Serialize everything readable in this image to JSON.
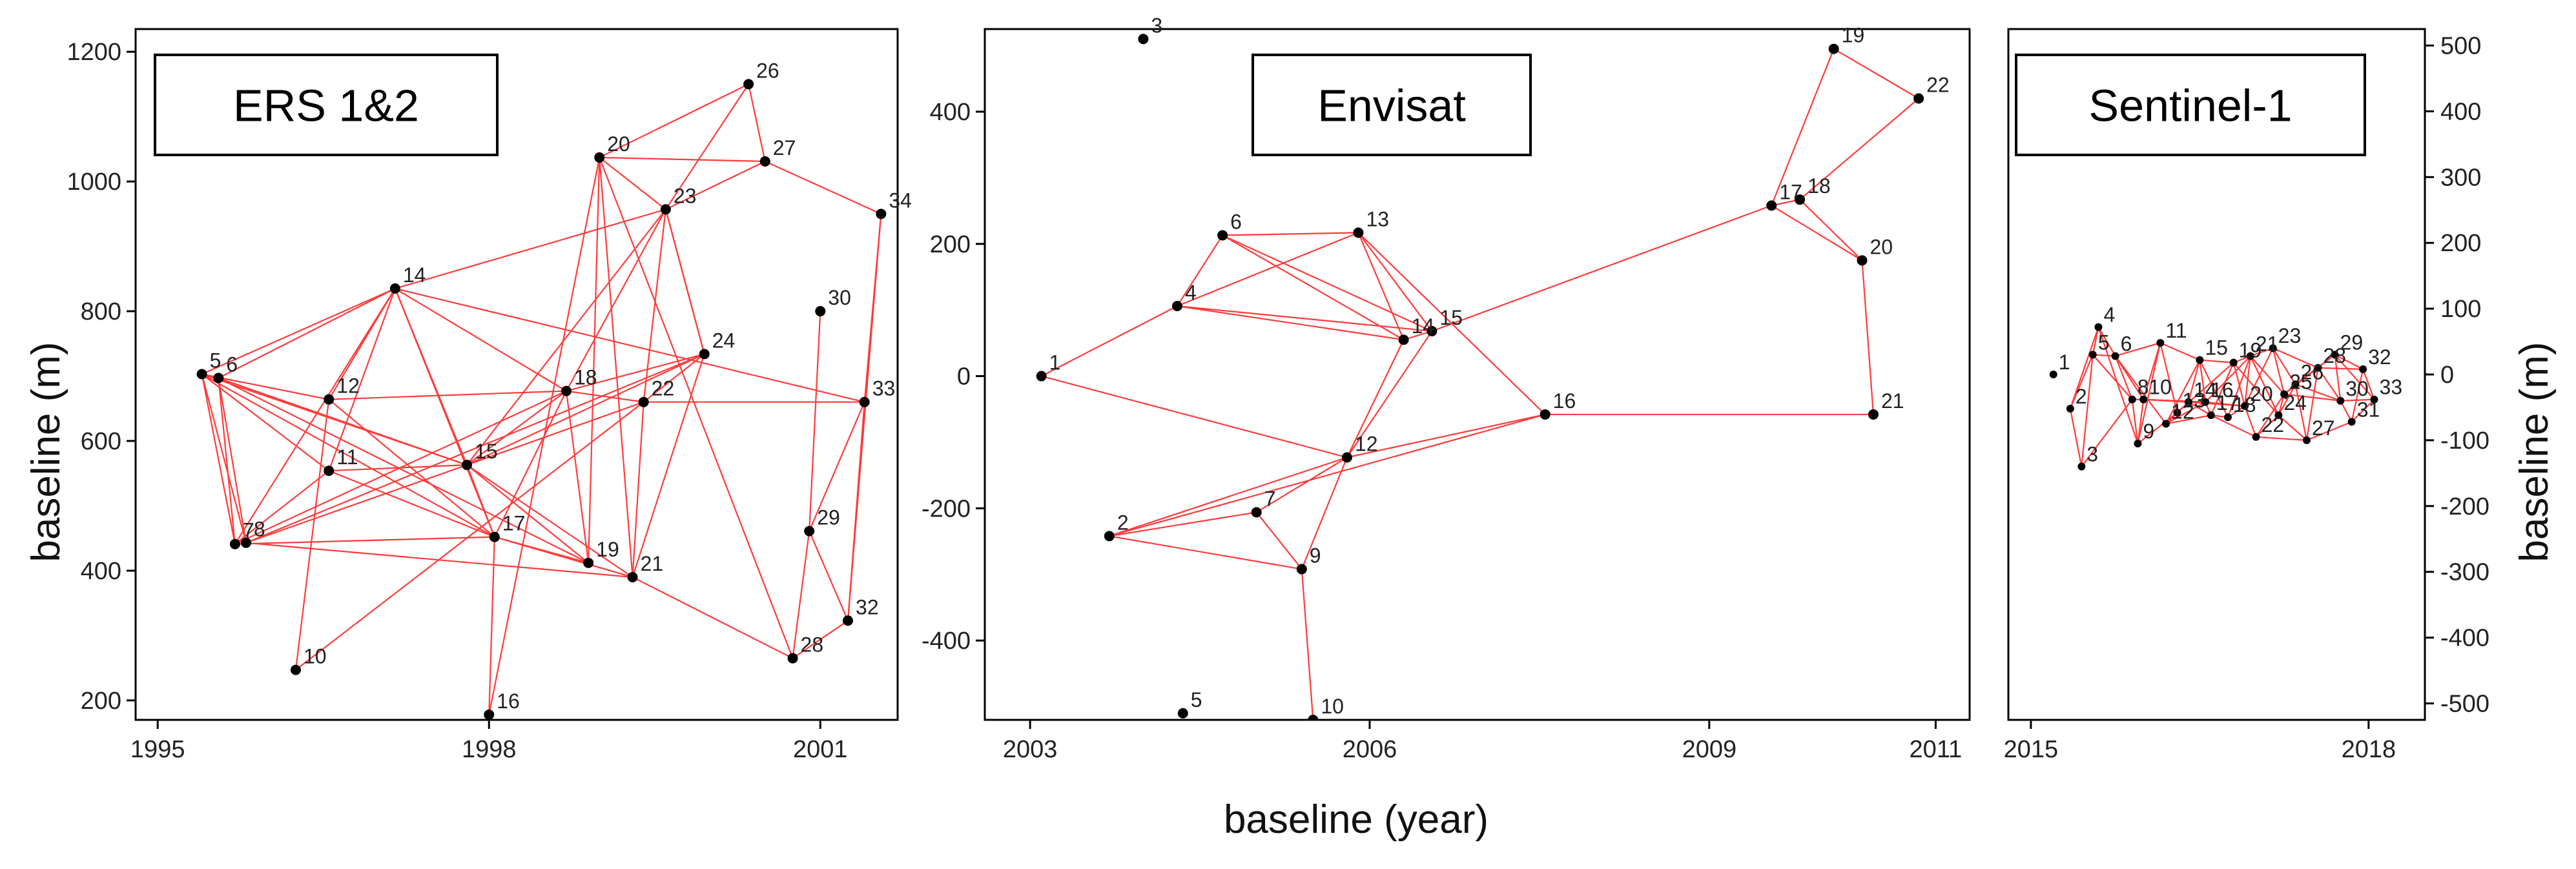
{
  "figure": {
    "xlabel": "baseline (year)",
    "ylabel_left": "baseline (m)",
    "ylabel_right": "baseline (m)"
  },
  "colors": {
    "edge": "#ff3b3b",
    "point": "#000000",
    "frame": "#000000"
  },
  "chart_data": [
    {
      "type": "scatter",
      "title": "ERS 1&2",
      "xlabel": "baseline (year)",
      "ylabel": "baseline (m)",
      "xlim": [
        1994.8,
        2001.7
      ],
      "ylim": [
        170,
        1235
      ],
      "xticks": [
        1995,
        1998,
        2001
      ],
      "yticks": [
        200,
        400,
        600,
        800,
        1000,
        1200
      ],
      "points": [
        {
          "id": "5",
          "x": 1995.4,
          "y": 703
        },
        {
          "id": "6",
          "x": 1995.55,
          "y": 697
        },
        {
          "id": "7",
          "x": 1995.7,
          "y": 441
        },
        {
          "id": "8",
          "x": 1995.8,
          "y": 443
        },
        {
          "id": "10",
          "x": 1996.25,
          "y": 247
        },
        {
          "id": "11",
          "x": 1996.55,
          "y": 554
        },
        {
          "id": "12",
          "x": 1996.55,
          "y": 664
        },
        {
          "id": "14",
          "x": 1997.15,
          "y": 835
        },
        {
          "id": "15",
          "x": 1997.8,
          "y": 563
        },
        {
          "id": "16",
          "x": 1998.0,
          "y": 178
        },
        {
          "id": "17",
          "x": 1998.05,
          "y": 452
        },
        {
          "id": "18",
          "x": 1998.7,
          "y": 677
        },
        {
          "id": "19",
          "x": 1998.9,
          "y": 412
        },
        {
          "id": "20",
          "x": 1999.0,
          "y": 1037
        },
        {
          "id": "21",
          "x": 1999.3,
          "y": 390
        },
        {
          "id": "22",
          "x": 1999.4,
          "y": 660
        },
        {
          "id": "23",
          "x": 1999.6,
          "y": 957
        },
        {
          "id": "24",
          "x": 1999.95,
          "y": 734
        },
        {
          "id": "26",
          "x": 2000.35,
          "y": 1150
        },
        {
          "id": "27",
          "x": 2000.5,
          "y": 1031
        },
        {
          "id": "28",
          "x": 2000.75,
          "y": 265
        },
        {
          "id": "29",
          "x": 2000.9,
          "y": 461
        },
        {
          "id": "30",
          "x": 2001.0,
          "y": 800
        },
        {
          "id": "32",
          "x": 2001.25,
          "y": 323
        },
        {
          "id": "33",
          "x": 2001.4,
          "y": 660
        },
        {
          "id": "34",
          "x": 2001.55,
          "y": 950
        }
      ],
      "edges": [
        [
          "5",
          "7"
        ],
        [
          "5",
          "8"
        ],
        [
          "5",
          "11"
        ],
        [
          "5",
          "12"
        ],
        [
          "5",
          "14"
        ],
        [
          "5",
          "15"
        ],
        [
          "5",
          "17"
        ],
        [
          "6",
          "7"
        ],
        [
          "6",
          "8"
        ],
        [
          "6",
          "15"
        ],
        [
          "6",
          "14"
        ],
        [
          "6",
          "19"
        ],
        [
          "7",
          "11"
        ],
        [
          "7",
          "14"
        ],
        [
          "7",
          "18"
        ],
        [
          "7",
          "17"
        ],
        [
          "8",
          "15"
        ],
        [
          "8",
          "24"
        ],
        [
          "8",
          "21"
        ],
        [
          "10",
          "12"
        ],
        [
          "10",
          "22"
        ],
        [
          "11",
          "15"
        ],
        [
          "11",
          "14"
        ],
        [
          "11",
          "17"
        ],
        [
          "12",
          "14"
        ],
        [
          "12",
          "18"
        ],
        [
          "12",
          "17"
        ],
        [
          "14",
          "15"
        ],
        [
          "14",
          "17"
        ],
        [
          "14",
          "18"
        ],
        [
          "14",
          "23"
        ],
        [
          "14",
          "33"
        ],
        [
          "15",
          "17"
        ],
        [
          "15",
          "18"
        ],
        [
          "15",
          "22"
        ],
        [
          "15",
          "23"
        ],
        [
          "15",
          "24"
        ],
        [
          "15",
          "21"
        ],
        [
          "15",
          "19"
        ],
        [
          "16",
          "17"
        ],
        [
          "16",
          "20"
        ],
        [
          "17",
          "19"
        ],
        [
          "17",
          "18"
        ],
        [
          "17",
          "21"
        ],
        [
          "18",
          "22"
        ],
        [
          "18",
          "24"
        ],
        [
          "18",
          "23"
        ],
        [
          "19",
          "18"
        ],
        [
          "19",
          "20"
        ],
        [
          "20",
          "23"
        ],
        [
          "20",
          "27"
        ],
        [
          "20",
          "26"
        ],
        [
          "20",
          "21"
        ],
        [
          "21",
          "22"
        ],
        [
          "21",
          "24"
        ],
        [
          "21",
          "28"
        ],
        [
          "22",
          "24"
        ],
        [
          "22",
          "33"
        ],
        [
          "22",
          "23"
        ],
        [
          "23",
          "24"
        ],
        [
          "23",
          "26"
        ],
        [
          "23",
          "27"
        ],
        [
          "26",
          "27"
        ],
        [
          "27",
          "34"
        ],
        [
          "28",
          "29"
        ],
        [
          "28",
          "32"
        ],
        [
          "28",
          "20"
        ],
        [
          "29",
          "30"
        ],
        [
          "29",
          "32"
        ],
        [
          "29",
          "33"
        ],
        [
          "32",
          "33"
        ],
        [
          "32",
          "34"
        ],
        [
          "33",
          "34"
        ],
        [
          "24",
          "23"
        ]
      ]
    },
    {
      "type": "scatter",
      "title": "Envisat",
      "xlabel": "baseline (year)",
      "ylim": [
        -520,
        525
      ],
      "xlim": [
        2002.6,
        2011.3
      ],
      "xticks": [
        2003,
        2006,
        2009,
        2011
      ],
      "yticks": [
        -400,
        -200,
        0,
        200,
        400
      ],
      "points": [
        {
          "id": "1",
          "x": 2003.1,
          "y": 0
        },
        {
          "id": "2",
          "x": 2003.7,
          "y": -242
        },
        {
          "id": "3",
          "x": 2004.0,
          "y": 510
        },
        {
          "id": "4",
          "x": 2004.3,
          "y": 106
        },
        {
          "id": "5",
          "x": 2004.35,
          "y": -510
        },
        {
          "id": "6",
          "x": 2004.7,
          "y": 213
        },
        {
          "id": "7",
          "x": 2005.0,
          "y": -206
        },
        {
          "id": "9",
          "x": 2005.4,
          "y": -292
        },
        {
          "id": "10",
          "x": 2005.5,
          "y": -520
        },
        {
          "id": "12",
          "x": 2005.8,
          "y": -123
        },
        {
          "id": "13",
          "x": 2005.9,
          "y": 217
        },
        {
          "id": "14",
          "x": 2006.3,
          "y": 55
        },
        {
          "id": "15",
          "x": 2006.55,
          "y": 68
        },
        {
          "id": "16",
          "x": 2007.55,
          "y": -58
        },
        {
          "id": "17",
          "x": 2009.55,
          "y": 258
        },
        {
          "id": "18",
          "x": 2009.8,
          "y": 267
        },
        {
          "id": "19",
          "x": 2010.1,
          "y": 495
        },
        {
          "id": "20",
          "x": 2010.35,
          "y": 175
        },
        {
          "id": "21",
          "x": 2010.45,
          "y": -58
        },
        {
          "id": "22",
          "x": 2010.85,
          "y": 420
        }
      ],
      "edges": [
        [
          "1",
          "4"
        ],
        [
          "1",
          "12"
        ],
        [
          "2",
          "7"
        ],
        [
          "2",
          "9"
        ],
        [
          "2",
          "12"
        ],
        [
          "2",
          "16"
        ],
        [
          "4",
          "6"
        ],
        [
          "4",
          "13"
        ],
        [
          "4",
          "14"
        ],
        [
          "4",
          "15"
        ],
        [
          "6",
          "13"
        ],
        [
          "6",
          "14"
        ],
        [
          "6",
          "15"
        ],
        [
          "7",
          "9"
        ],
        [
          "7",
          "12"
        ],
        [
          "9",
          "10"
        ],
        [
          "9",
          "12"
        ],
        [
          "12",
          "14"
        ],
        [
          "12",
          "16"
        ],
        [
          "12",
          "15"
        ],
        [
          "13",
          "14"
        ],
        [
          "13",
          "15"
        ],
        [
          "13",
          "16"
        ],
        [
          "14",
          "15"
        ],
        [
          "15",
          "17"
        ],
        [
          "16",
          "21"
        ],
        [
          "17",
          "18"
        ],
        [
          "17",
          "20"
        ],
        [
          "17",
          "19"
        ],
        [
          "18",
          "20"
        ],
        [
          "18",
          "22"
        ],
        [
          "19",
          "22"
        ],
        [
          "20",
          "21"
        ]
      ]
    },
    {
      "type": "scatter",
      "title": "Sentinel-1",
      "xlabel": "baseline (year)",
      "ylabel": "baseline (m)",
      "xlim": [
        2014.8,
        2018.5
      ],
      "ylim": [
        -525,
        525
      ],
      "xticks": [
        2015,
        2018
      ],
      "yticks": [
        -500,
        -400,
        -300,
        -200,
        -100,
        0,
        100,
        200,
        300,
        400,
        500
      ],
      "points": [
        {
          "id": "1",
          "x": 2015.2,
          "y": 0
        },
        {
          "id": "2",
          "x": 2015.35,
          "y": -52
        },
        {
          "id": "3",
          "x": 2015.45,
          "y": -140
        },
        {
          "id": "4",
          "x": 2015.6,
          "y": 72
        },
        {
          "id": "5",
          "x": 2015.55,
          "y": 30
        },
        {
          "id": "6",
          "x": 2015.75,
          "y": 28
        },
        {
          "id": "8",
          "x": 2015.9,
          "y": -38
        },
        {
          "id": "9",
          "x": 2015.95,
          "y": -105
        },
        {
          "id": "10",
          "x": 2016.0,
          "y": -38
        },
        {
          "id": "11",
          "x": 2016.15,
          "y": 48
        },
        {
          "id": "12",
          "x": 2016.2,
          "y": -75
        },
        {
          "id": "13",
          "x": 2016.3,
          "y": -58
        },
        {
          "id": "14",
          "x": 2016.4,
          "y": -42
        },
        {
          "id": "15",
          "x": 2016.5,
          "y": 22
        },
        {
          "id": "16",
          "x": 2016.55,
          "y": -42
        },
        {
          "id": "17",
          "x": 2016.6,
          "y": -62
        },
        {
          "id": "18",
          "x": 2016.75,
          "y": -65
        },
        {
          "id": "19",
          "x": 2016.8,
          "y": 18
        },
        {
          "id": "20",
          "x": 2016.9,
          "y": -48
        },
        {
          "id": "21",
          "x": 2016.95,
          "y": 28
        },
        {
          "id": "22",
          "x": 2017.0,
          "y": -95
        },
        {
          "id": "23",
          "x": 2017.15,
          "y": 40
        },
        {
          "id": "24",
          "x": 2017.2,
          "y": -62
        },
        {
          "id": "25",
          "x": 2017.25,
          "y": -30
        },
        {
          "id": "26",
          "x": 2017.35,
          "y": -15
        },
        {
          "id": "27",
          "x": 2017.45,
          "y": -100
        },
        {
          "id": "28",
          "x": 2017.55,
          "y": 10
        },
        {
          "id": "29",
          "x": 2017.7,
          "y": 30
        },
        {
          "id": "30",
          "x": 2017.75,
          "y": -40
        },
        {
          "id": "31",
          "x": 2017.85,
          "y": -72
        },
        {
          "id": "32",
          "x": 2017.95,
          "y": 8
        },
        {
          "id": "33",
          "x": 2018.05,
          "y": -38
        }
      ],
      "edges": [
        [
          "2",
          "4"
        ],
        [
          "2",
          "3"
        ],
        [
          "2",
          "5"
        ],
        [
          "3",
          "5"
        ],
        [
          "3",
          "8"
        ],
        [
          "4",
          "5"
        ],
        [
          "4",
          "6"
        ],
        [
          "4",
          "9"
        ],
        [
          "5",
          "6"
        ],
        [
          "5",
          "8"
        ],
        [
          "6",
          "8"
        ],
        [
          "6",
          "10"
        ],
        [
          "6",
          "11"
        ],
        [
          "6",
          "12"
        ],
        [
          "8",
          "10"
        ],
        [
          "8",
          "9"
        ],
        [
          "9",
          "10"
        ],
        [
          "9",
          "11"
        ],
        [
          "9",
          "13"
        ],
        [
          "10",
          "11"
        ],
        [
          "10",
          "14"
        ],
        [
          "10",
          "16"
        ],
        [
          "11",
          "13"
        ],
        [
          "11",
          "15"
        ],
        [
          "12",
          "14"
        ],
        [
          "12",
          "15"
        ],
        [
          "12",
          "16"
        ],
        [
          "13",
          "14"
        ],
        [
          "13",
          "19"
        ],
        [
          "14",
          "15"
        ],
        [
          "14",
          "16"
        ],
        [
          "14",
          "20"
        ],
        [
          "15",
          "16"
        ],
        [
          "15",
          "19"
        ],
        [
          "15",
          "18"
        ],
        [
          "16",
          "17"
        ],
        [
          "16",
          "20"
        ],
        [
          "16",
          "21"
        ],
        [
          "17",
          "18"
        ],
        [
          "17",
          "19"
        ],
        [
          "17",
          "22"
        ],
        [
          "18",
          "20"
        ],
        [
          "18",
          "21"
        ],
        [
          "19",
          "20"
        ],
        [
          "19",
          "21"
        ],
        [
          "19",
          "24"
        ],
        [
          "20",
          "21"
        ],
        [
          "20",
          "22"
        ],
        [
          "20",
          "23"
        ],
        [
          "21",
          "23"
        ],
        [
          "21",
          "24"
        ],
        [
          "21",
          "25"
        ],
        [
          "22",
          "24"
        ],
        [
          "22",
          "25"
        ],
        [
          "22",
          "27"
        ],
        [
          "23",
          "25"
        ],
        [
          "23",
          "26"
        ],
        [
          "23",
          "28"
        ],
        [
          "24",
          "25"
        ],
        [
          "24",
          "26"
        ],
        [
          "24",
          "27"
        ],
        [
          "25",
          "26"
        ],
        [
          "25",
          "28"
        ],
        [
          "25",
          "30"
        ],
        [
          "26",
          "27"
        ],
        [
          "26",
          "29"
        ],
        [
          "26",
          "30"
        ],
        [
          "27",
          "28"
        ],
        [
          "27",
          "31"
        ],
        [
          "28",
          "29"
        ],
        [
          "28",
          "30"
        ],
        [
          "28",
          "32"
        ],
        [
          "29",
          "30"
        ],
        [
          "29",
          "32"
        ],
        [
          "29",
          "33"
        ],
        [
          "30",
          "31"
        ],
        [
          "30",
          "33"
        ],
        [
          "31",
          "32"
        ],
        [
          "31",
          "33"
        ],
        [
          "32",
          "33"
        ],
        [
          "10",
          "16"
        ],
        [
          "12",
          "17"
        ],
        [
          "14",
          "17"
        ]
      ]
    }
  ]
}
